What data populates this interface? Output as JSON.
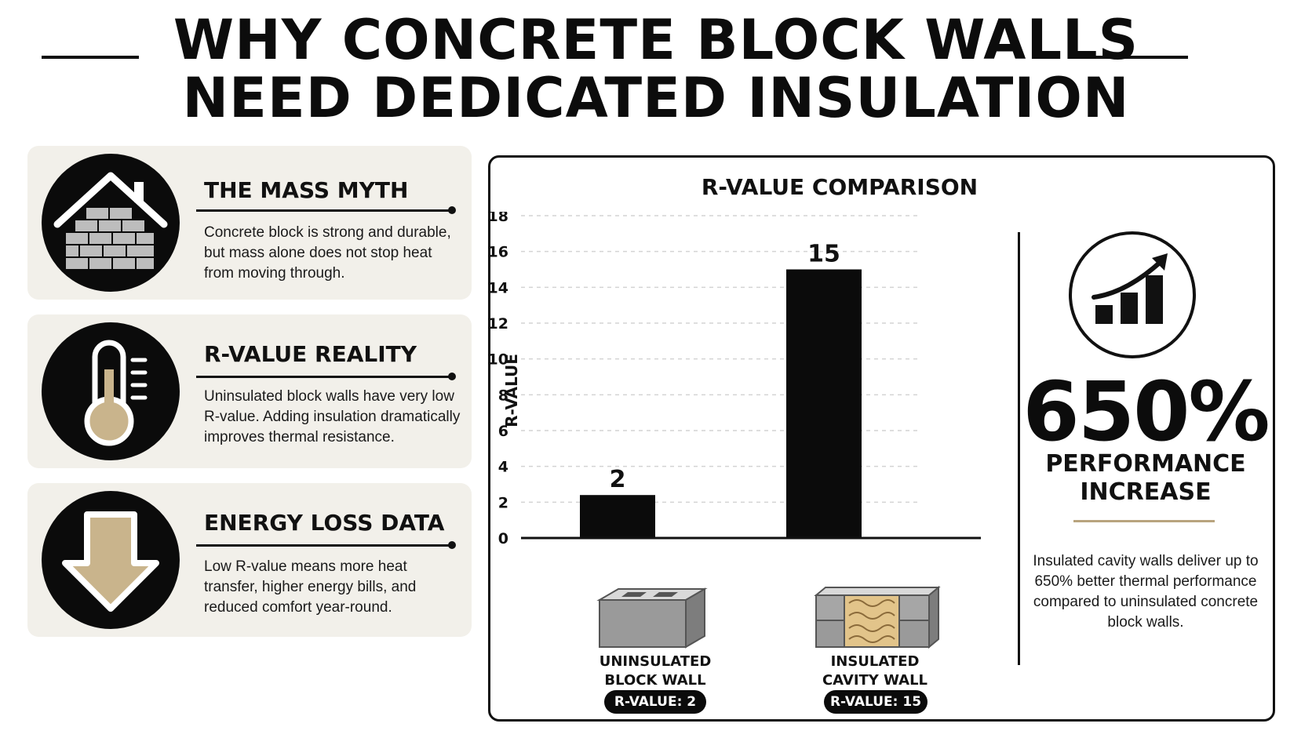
{
  "header": {
    "title_line1": "WHY CONCRETE BLOCK WALLS",
    "title_line2": "NEED DEDICATED INSULATION"
  },
  "cards": [
    {
      "title": "THE MASS MYTH",
      "text": "Concrete block is strong and durable, but mass alone does not stop heat from moving through.",
      "icon": "brick-house-icon"
    },
    {
      "title": "R-VALUE REALITY",
      "text": "Uninsulated block walls have very low R-value. Adding insulation dramatically improves thermal resistance.",
      "icon": "thermometer-icon"
    },
    {
      "title": "ENERGY LOSS DATA",
      "text": "Low R-value means more heat transfer, higher energy bills, and reduced comfort year-round.",
      "icon": "down-arrow-icon"
    }
  ],
  "chart_data": {
    "type": "bar",
    "title": "R-VALUE COMPARISON",
    "ylabel": "R-VALUE",
    "xlabel": "",
    "ylim": [
      0,
      18
    ],
    "yticks": [
      0,
      2,
      4,
      6,
      8,
      10,
      12,
      14,
      16,
      18
    ],
    "grid": true,
    "categories": [
      "UNINSULATED BLOCK WALL",
      "INSULATED CAVITY WALL"
    ],
    "category_lines": [
      [
        "UNINSULATED",
        "BLOCK WALL"
      ],
      [
        "INSULATED",
        "CAVITY WALL"
      ]
    ],
    "values": [
      2.4,
      15
    ],
    "data_labels": [
      "2",
      "15"
    ],
    "badges": [
      "R-VALUE: 2",
      "R-VALUE: 15"
    ]
  },
  "highlight": {
    "percent": "650%",
    "label_line1": "PERFORMANCE",
    "label_line2": "INCREASE",
    "description": "Insulated cavity walls deliver up to 650% better thermal performance compared to uninsulated concrete block walls.",
    "icon": "growth-chart-icon"
  },
  "colors": {
    "ink": "#0b0b0b",
    "card_bg": "#f2f0ea",
    "accent_tan": "#c9b48c",
    "gold_rule": "#b8a47e",
    "grid": "#d4d4d4"
  }
}
